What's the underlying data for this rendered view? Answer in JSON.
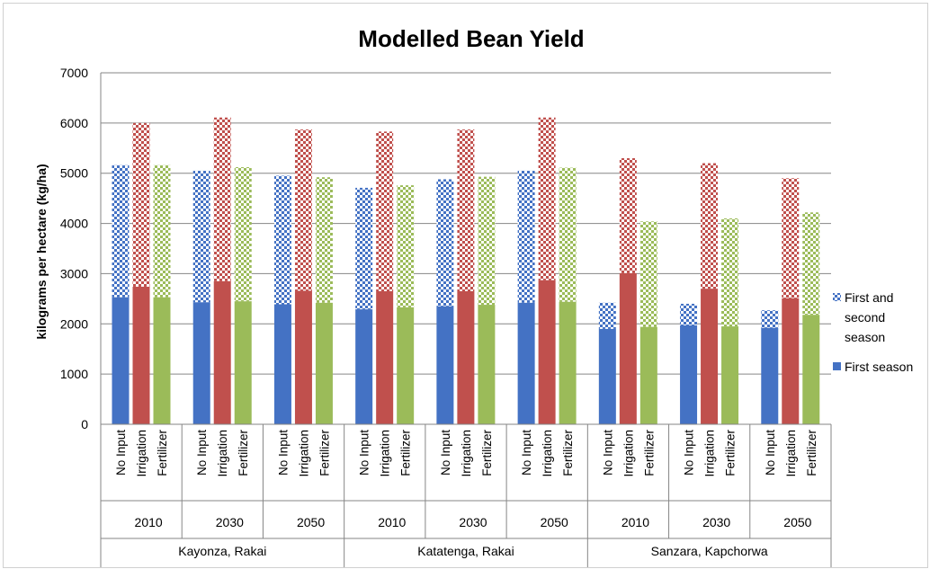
{
  "chart_data": {
    "type": "bar",
    "title": "Modelled Bean Yield",
    "ylabel": "kilograms per hectare (kg/ha)",
    "xlabel": "",
    "ylim": [
      0,
      7000
    ],
    "yticks": [
      "0",
      "1000",
      "2000",
      "3000",
      "4000",
      "5000",
      "6000",
      "7000"
    ],
    "grid": true,
    "stacked": false,
    "legend_position": "right",
    "sites": [
      "Kayonza, Rakai",
      "Katatenga, Rakai",
      "Sanzara, Kapchorwa"
    ],
    "years": [
      "2010",
      "2030",
      "2050"
    ],
    "scenarios": [
      "No Input",
      "Irrigation",
      "Fertilizer"
    ],
    "scenario_colors": [
      "#4472c4",
      "#c0504d",
      "#9bbb59"
    ],
    "series": [
      {
        "name": "First season",
        "pattern": "solid",
        "values": [
          2530,
          2740,
          2530,
          2430,
          2850,
          2450,
          2390,
          2660,
          2420,
          2290,
          2650,
          2330,
          2350,
          2650,
          2380,
          2420,
          2870,
          2440,
          1900,
          3010,
          1940,
          1970,
          2700,
          1950,
          1920,
          2510,
          2180
        ]
      },
      {
        "name": "First and second season",
        "pattern": "checkered",
        "values": [
          5160,
          6000,
          5160,
          5050,
          6110,
          5120,
          4950,
          5870,
          4920,
          4710,
          5830,
          4760,
          4880,
          5870,
          4930,
          5050,
          6110,
          5110,
          2420,
          5300,
          4040,
          2400,
          5200,
          4100,
          2270,
          4900,
          4220
        ]
      }
    ]
  }
}
